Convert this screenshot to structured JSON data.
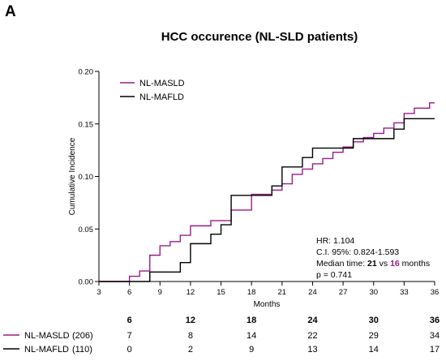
{
  "panel_letter": "A",
  "chart_data": {
    "type": "line",
    "title": "HCC occurence (NL-SLD patients)",
    "xlabel": "Months",
    "ylabel": "Cumulative Incidence",
    "xlim": [
      3,
      36
    ],
    "ylim": [
      0,
      0.2
    ],
    "x_ticks": [
      3,
      6,
      9,
      12,
      15,
      18,
      21,
      24,
      27,
      30,
      33,
      36
    ],
    "y_ticks": [
      "0.00",
      "0.05",
      "0.10",
      "0.15",
      "0.20"
    ],
    "legend_position": "top-left",
    "series": [
      {
        "name": "NL-MASLD",
        "color": "#9b1b8a",
        "steps": [
          [
            3,
            0
          ],
          [
            6,
            0.005
          ],
          [
            7,
            0.01
          ],
          [
            8,
            0.025
          ],
          [
            9,
            0.034
          ],
          [
            10,
            0.038
          ],
          [
            11,
            0.044
          ],
          [
            12,
            0.053
          ],
          [
            14,
            0.058
          ],
          [
            16,
            0.068
          ],
          [
            18,
            0.083
          ],
          [
            20,
            0.087
          ],
          [
            21,
            0.093
          ],
          [
            22,
            0.102
          ],
          [
            23,
            0.107
          ],
          [
            24,
            0.112
          ],
          [
            25,
            0.117
          ],
          [
            26,
            0.123
          ],
          [
            27,
            0.128
          ],
          [
            28,
            0.133
          ],
          [
            29,
            0.137
          ],
          [
            30,
            0.141
          ],
          [
            31,
            0.146
          ],
          [
            32,
            0.151
          ],
          [
            33,
            0.16
          ],
          [
            34,
            0.165
          ],
          [
            35.5,
            0.17
          ],
          [
            36,
            0.17
          ]
        ]
      },
      {
        "name": "NL-MAFLD",
        "color": "#000000",
        "steps": [
          [
            3,
            0
          ],
          [
            8,
            0.009
          ],
          [
            11,
            0.018
          ],
          [
            12,
            0.036
          ],
          [
            14,
            0.045
          ],
          [
            15,
            0.054
          ],
          [
            16,
            0.082
          ],
          [
            20,
            0.091
          ],
          [
            21,
            0.109
          ],
          [
            23,
            0.118
          ],
          [
            24,
            0.127
          ],
          [
            28,
            0.136
          ],
          [
            32,
            0.145
          ],
          [
            33,
            0.155
          ],
          [
            36,
            0.155
          ]
        ]
      }
    ],
    "annotations": {
      "hr": "HR: 1.104",
      "ci": "C.I. 95%: 0.824-1.593",
      "median_prefix": "Median time: ",
      "median_a": "21",
      "median_mid": " vs ",
      "median_b": "16",
      "median_suffix": " months",
      "p": "p = 0.741"
    },
    "risk_table": {
      "times": [
        "6",
        "12",
        "18",
        "24",
        "30",
        "36"
      ],
      "rows": [
        {
          "name": "NL-MASLD",
          "n": "(206)",
          "color": "#9b1b8a",
          "values": [
            "7",
            "8",
            "14",
            "22",
            "29",
            "34"
          ]
        },
        {
          "name": "NL-MAFLD",
          "n": "(110)",
          "color": "#000000",
          "values": [
            "0",
            "2",
            "9",
            "13",
            "14",
            "17"
          ]
        }
      ]
    }
  }
}
